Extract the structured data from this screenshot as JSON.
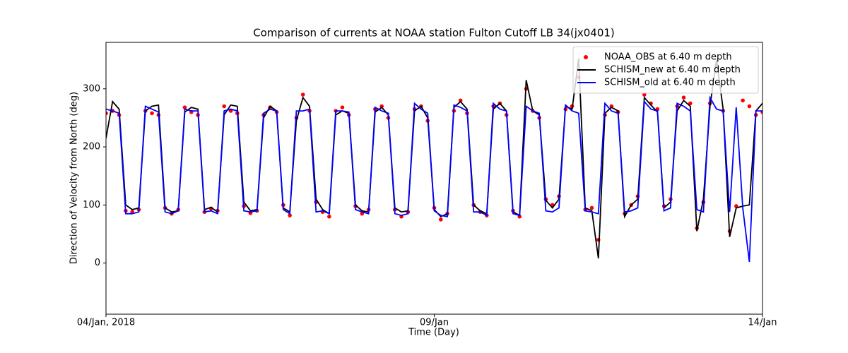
{
  "chart_data": {
    "type": "line",
    "title": "Comparison of currents at NOAA station Fulton Cutoff LB 34(jx0401)",
    "xlabel": "Time (Day)",
    "ylabel": "Direction of Velocity from North (deg)",
    "x": [
      0,
      0.1,
      0.2,
      0.3,
      0.4,
      0.5,
      0.6,
      0.7,
      0.8,
      0.9,
      1,
      1.1,
      1.2,
      1.3,
      1.4,
      1.5,
      1.6,
      1.7,
      1.8,
      1.9,
      2,
      2.1,
      2.2,
      2.3,
      2.4,
      2.5,
      2.6,
      2.7,
      2.8,
      2.9,
      3,
      3.1,
      3.2,
      3.3,
      3.4,
      3.5,
      3.6,
      3.7,
      3.8,
      3.9,
      4,
      4.1,
      4.2,
      4.3,
      4.4,
      4.5,
      4.6,
      4.7,
      4.8,
      4.9,
      5,
      5.1,
      5.2,
      5.3,
      5.4,
      5.5,
      5.6,
      5.7,
      5.8,
      5.9,
      6,
      6.1,
      6.2,
      6.3,
      6.4,
      6.5,
      6.6,
      6.7,
      6.8,
      6.9,
      7,
      7.1,
      7.2,
      7.3,
      7.4,
      7.5,
      7.6,
      7.7,
      7.8,
      7.9,
      8,
      8.1,
      8.2,
      8.3,
      8.4,
      8.5,
      8.6,
      8.7,
      8.8,
      8.9,
      9,
      9.1,
      9.2,
      9.3,
      9.4,
      9.5,
      9.6,
      9.7,
      9.8,
      9.9,
      10
    ],
    "series": [
      {
        "name": "NOAA_OBS at 6.40 m depth",
        "color": "#ff0000",
        "style": "marker",
        "values": [
          258,
          262,
          255,
          90,
          88,
          92,
          262,
          258,
          255,
          95,
          85,
          92,
          268,
          260,
          255,
          88,
          94,
          90,
          270,
          262,
          258,
          98,
          86,
          90,
          255,
          268,
          260,
          100,
          82,
          250,
          290,
          262,
          105,
          88,
          80,
          262,
          268,
          255,
          98,
          85,
          92,
          265,
          270,
          250,
          92,
          80,
          88,
          265,
          270,
          245,
          95,
          75,
          85,
          262,
          280,
          258,
          100,
          88,
          82,
          270,
          275,
          255,
          90,
          80,
          300,
          262,
          250,
          110,
          100,
          115,
          265,
          270,
          320,
          92,
          95,
          40,
          255,
          270,
          260,
          85,
          100,
          115,
          290,
          275,
          265,
          98,
          110,
          270,
          285,
          275,
          60,
          105,
          275,
          340,
          262,
          55,
          98,
          280,
          270,
          255,
          260
        ]
      },
      {
        "name": "SCHISM_new at 6.40 m depth",
        "color": "#000000",
        "style": "line",
        "values": [
          215,
          278,
          265,
          100,
          92,
          95,
          262,
          270,
          272,
          95,
          88,
          90,
          260,
          268,
          265,
          92,
          96,
          88,
          255,
          272,
          270,
          105,
          90,
          92,
          250,
          270,
          262,
          95,
          88,
          245,
          285,
          270,
          110,
          92,
          85,
          255,
          262,
          258,
          100,
          90,
          88,
          260,
          268,
          255,
          95,
          88,
          90,
          262,
          270,
          250,
          92,
          80,
          85,
          268,
          278,
          265,
          100,
          90,
          85,
          265,
          275,
          262,
          88,
          82,
          315,
          262,
          255,
          108,
          95,
          110,
          270,
          265,
          352,
          95,
          90,
          8,
          258,
          268,
          262,
          80,
          100,
          110,
          285,
          272,
          260,
          95,
          105,
          262,
          280,
          270,
          55,
          110,
          270,
          350,
          265,
          45,
          95,
          98,
          100,
          262,
          275
        ]
      },
      {
        "name": "SCHISM_old at 6.40 m depth",
        "color": "#0000ff",
        "style": "line",
        "values": [
          265,
          262,
          258,
          85,
          85,
          88,
          270,
          265,
          260,
          88,
          85,
          90,
          265,
          262,
          262,
          88,
          90,
          85,
          262,
          265,
          262,
          90,
          88,
          90,
          258,
          265,
          262,
          92,
          85,
          262,
          262,
          265,
          88,
          90,
          85,
          262,
          262,
          260,
          92,
          88,
          85,
          268,
          262,
          258,
          85,
          82,
          85,
          275,
          265,
          258,
          90,
          82,
          80,
          272,
          268,
          262,
          88,
          88,
          82,
          275,
          265,
          262,
          85,
          82,
          270,
          262,
          258,
          90,
          88,
          95,
          272,
          262,
          258,
          90,
          88,
          85,
          275,
          262,
          258,
          88,
          90,
          95,
          278,
          265,
          262,
          90,
          95,
          275,
          270,
          262,
          92,
          88,
          285,
          265,
          262,
          88,
          268,
          95,
          2,
          262,
          262
        ]
      }
    ],
    "xlim": [
      0,
      10
    ],
    "xticks": [
      {
        "value": 0,
        "label": "04/Jan, 2018"
      },
      {
        "value": 5,
        "label": "09/Jan"
      },
      {
        "value": 10,
        "label": "14/Jan"
      }
    ],
    "ylim": [
      -88,
      380
    ],
    "yticks": [
      0,
      100,
      200,
      300
    ],
    "grid": false,
    "legend": "upper-right"
  }
}
